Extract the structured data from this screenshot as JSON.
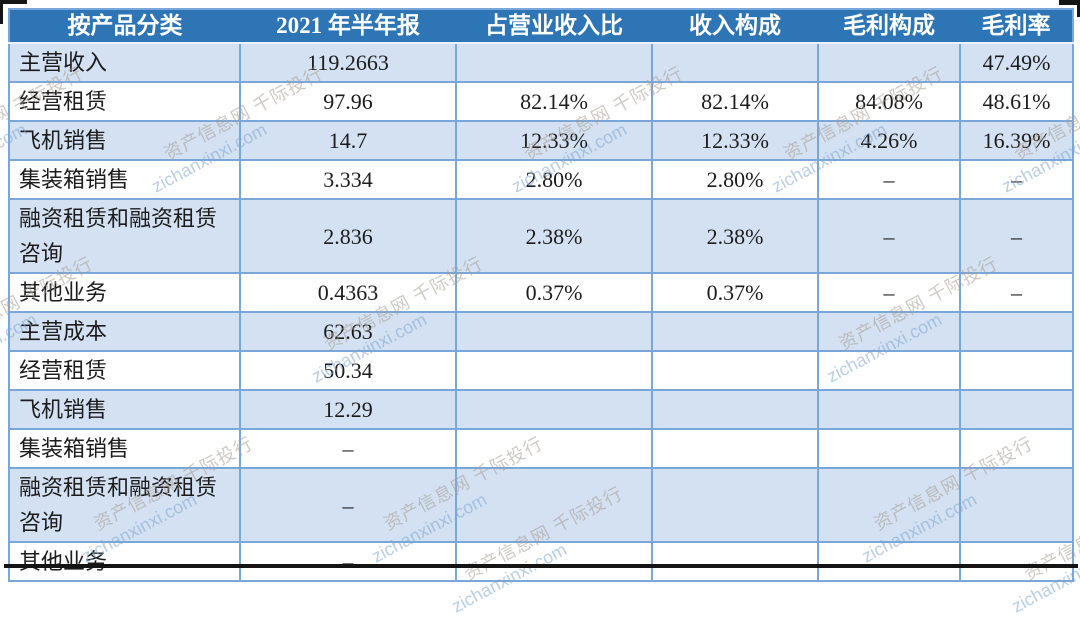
{
  "table": {
    "columns": [
      {
        "label": "按产品分类"
      },
      {
        "label": "2021 年半年报"
      },
      {
        "label": "占营业收入比"
      },
      {
        "label": "收入构成"
      },
      {
        "label": "毛利构成"
      },
      {
        "label": "毛利率"
      }
    ],
    "rows": [
      {
        "label": "主营收入",
        "values": [
          "119.2663",
          "",
          "",
          "",
          "47.49%"
        ]
      },
      {
        "label": "经营租赁",
        "values": [
          "97.96",
          "82.14%",
          "82.14%",
          "84.08%",
          "48.61%"
        ]
      },
      {
        "label": "飞机销售",
        "values": [
          "14.7",
          "12.33%",
          "12.33%",
          "4.26%",
          "16.39%"
        ]
      },
      {
        "label": "集装箱销售",
        "values": [
          "3.334",
          "2.80%",
          "2.80%",
          "–",
          "–"
        ]
      },
      {
        "label": "融资租赁和融资租赁咨询",
        "values": [
          "2.836",
          "2.38%",
          "2.38%",
          "–",
          "–"
        ]
      },
      {
        "label": "其他业务",
        "values": [
          "0.4363",
          "0.37%",
          "0.37%",
          "–",
          "–"
        ]
      },
      {
        "label": "主营成本",
        "values": [
          "62.63",
          "",
          "",
          "",
          ""
        ]
      },
      {
        "label": "经营租赁",
        "values": [
          "50.34",
          "",
          "",
          "",
          ""
        ]
      },
      {
        "label": "飞机销售",
        "values": [
          "12.29",
          "",
          "",
          "",
          ""
        ]
      },
      {
        "label": "集装箱销售",
        "values": [
          "–",
          "",
          "",
          "",
          ""
        ]
      },
      {
        "label": "融资租赁和融资租赁咨询",
        "values": [
          "–",
          "",
          "",
          "",
          ""
        ]
      },
      {
        "label": "其他业务",
        "values": [
          "–",
          "",
          "",
          "",
          ""
        ]
      }
    ]
  },
  "watermark": {
    "line1": "资产信息网 千际投行",
    "line2": "zichanxinxi.com"
  },
  "colors": {
    "header_bg": "#2E75B6",
    "header_text": "#FFFFFF",
    "band_row_bg": "#D3E1F2",
    "plain_row_bg": "#FFFFFF",
    "grid_border": "#79A7DA",
    "body_text": "#1C1C1C",
    "watermark_cn": "#A89D92",
    "watermark_en": "#7FA6CF"
  }
}
